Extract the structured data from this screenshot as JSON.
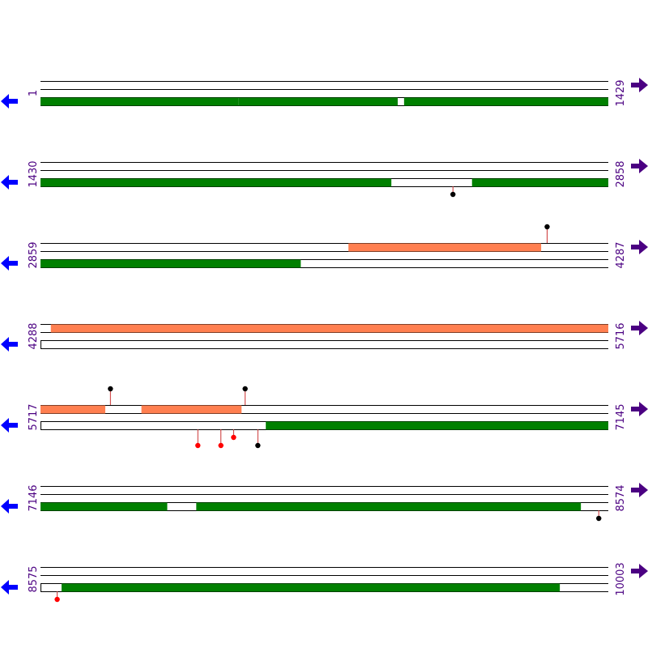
{
  "colors": {
    "track_line": "#000000",
    "feature_green": "#008000",
    "feature_salmon": "#ff7f50",
    "label_purple": "#4b0082",
    "arrow_left": "#0000ff",
    "arrow_right": "#4b0082",
    "marker_black": "#000000",
    "marker_red": "#ff0000",
    "stem_color": "#cc3333"
  },
  "icons": {
    "left": "left-arrow-icon",
    "right": "right-arrow-icon"
  },
  "rows": [
    {
      "start_label": "1",
      "end_label": "1429",
      "start": 1,
      "end": 1429,
      "features": [
        {
          "track": 2,
          "start": 1,
          "end": 499,
          "color": "green"
        },
        {
          "track": 2,
          "start": 500,
          "end": 899,
          "color": "green"
        },
        {
          "track": 2,
          "start": 916,
          "end": 1429,
          "color": "green"
        }
      ],
      "markers": []
    },
    {
      "start_label": "1430",
      "end_label": "2858",
      "start": 1430,
      "end": 2858,
      "features": [
        {
          "track": 2,
          "start": 1430,
          "end": 2312,
          "color": "green"
        },
        {
          "track": 2,
          "start": 2516,
          "end": 2858,
          "color": "green"
        }
      ],
      "markers": [
        {
          "pos": 2468,
          "dir": "down",
          "len": 1,
          "color": "black"
        }
      ]
    },
    {
      "start_label": "2859",
      "end_label": "4287",
      "start": 2859,
      "end": 4287,
      "features": [
        {
          "track": 0,
          "start": 3634,
          "end": 4118,
          "color": "salmon"
        },
        {
          "track": 2,
          "start": 2859,
          "end": 3513,
          "color": "green"
        }
      ],
      "markers": [
        {
          "pos": 4134,
          "dir": "up",
          "len": 2,
          "color": "black"
        }
      ]
    },
    {
      "start_label": "4288",
      "end_label": "5716",
      "start": 4288,
      "end": 5716,
      "features": [
        {
          "track": 0,
          "start": 4314,
          "end": 5716,
          "color": "salmon"
        }
      ],
      "markers": []
    },
    {
      "start_label": "5717",
      "end_label": "7145",
      "start": 5717,
      "end": 7145,
      "features": [
        {
          "track": 0,
          "start": 5717,
          "end": 5879,
          "color": "salmon"
        },
        {
          "track": 0,
          "start": 5971,
          "end": 6222,
          "color": "salmon"
        },
        {
          "track": 2,
          "start": 6284,
          "end": 7145,
          "color": "green"
        }
      ],
      "markers": [
        {
          "pos": 5893,
          "dir": "up",
          "len": 2,
          "color": "black"
        },
        {
          "pos": 6232,
          "dir": "up",
          "len": 2,
          "color": "black"
        },
        {
          "pos": 6113,
          "dir": "down",
          "len": 2,
          "color": "red"
        },
        {
          "pos": 6171,
          "dir": "down",
          "len": 2,
          "color": "red"
        },
        {
          "pos": 6203,
          "dir": "down",
          "len": 1,
          "color": "red"
        },
        {
          "pos": 6264,
          "dir": "down",
          "len": 2,
          "color": "black"
        }
      ]
    },
    {
      "start_label": "7146",
      "end_label": "8574",
      "start": 7146,
      "end": 8574,
      "features": [
        {
          "track": 2,
          "start": 7146,
          "end": 7464,
          "color": "green"
        },
        {
          "track": 2,
          "start": 7538,
          "end": 8505,
          "color": "green"
        }
      ],
      "markers": [
        {
          "pos": 8551,
          "dir": "down",
          "len": 1,
          "color": "black"
        }
      ]
    },
    {
      "start_label": "8575",
      "end_label": "10003",
      "start": 8575,
      "end": 10003,
      "features": [
        {
          "track": 2,
          "start": 8628,
          "end": 9881,
          "color": "green"
        }
      ],
      "markers": [
        {
          "pos": 8617,
          "dir": "down",
          "len": 1,
          "color": "red"
        }
      ]
    }
  ]
}
